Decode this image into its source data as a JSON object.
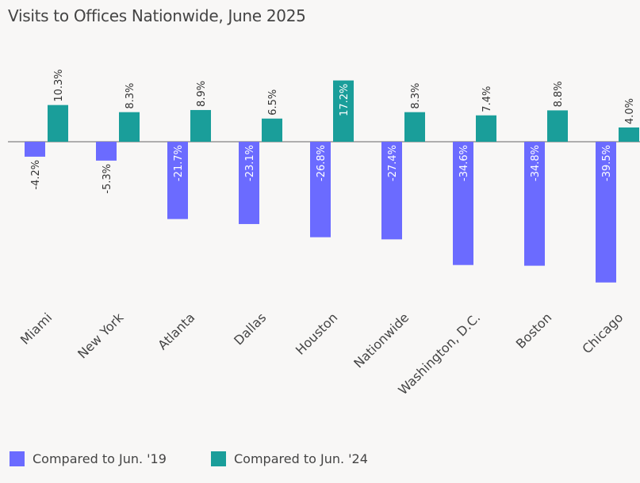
{
  "chart_data": {
    "type": "bar",
    "title": "Visits to Offices Nationwide, June 2025",
    "categories": [
      "Miami",
      "New York",
      "Atlanta",
      "Dallas",
      "Houston",
      "Nationwide",
      "Washington, D.C.",
      "Boston",
      "Chicago"
    ],
    "series": [
      {
        "name": "Compared to Jun. '19",
        "color": "#6b6bff",
        "values": [
          -4.2,
          -5.3,
          -21.7,
          -23.1,
          -26.8,
          -27.4,
          -34.6,
          -34.8,
          -39.5
        ]
      },
      {
        "name": "Compared to Jun. '24",
        "color": "#1a9e9a",
        "values": [
          10.3,
          8.3,
          8.9,
          6.5,
          17.2,
          8.3,
          7.4,
          8.8,
          4.0
        ]
      }
    ],
    "value_suffix": "%",
    "data_labels": true,
    "grid": false,
    "legend_position": "bottom-left"
  }
}
